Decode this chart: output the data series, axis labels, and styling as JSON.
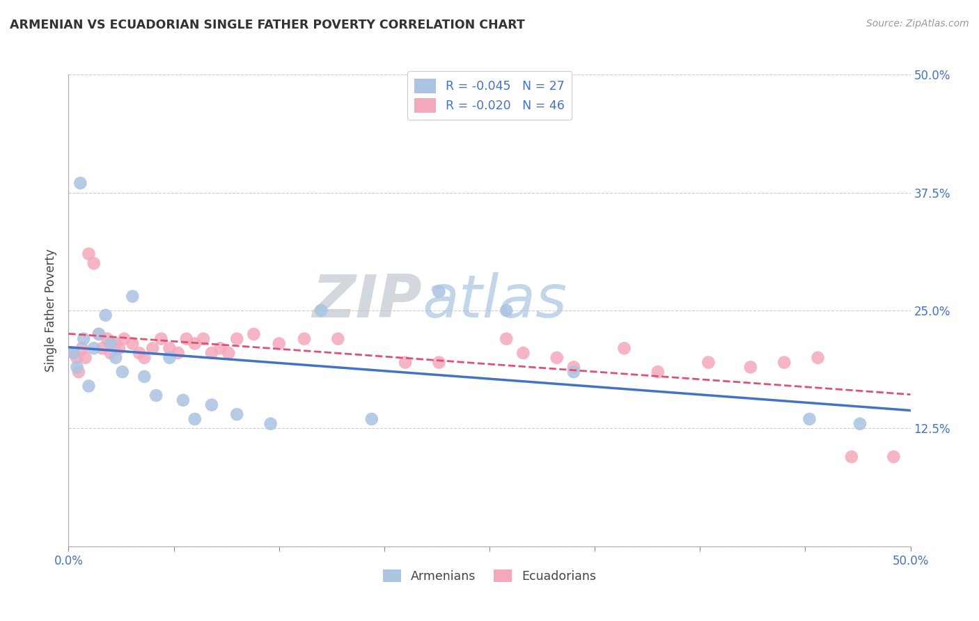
{
  "title": "ARMENIAN VS ECUADORIAN SINGLE FATHER POVERTY CORRELATION CHART",
  "source": "Source: ZipAtlas.com",
  "ylabel": "Single Father Poverty",
  "legend_armenian": "R = -0.045   N = 27",
  "legend_ecuadorian": "R = -0.020   N = 46",
  "legend_label1": "Armenians",
  "legend_label2": "Ecuadorians",
  "color_armenian": "#aac4e2",
  "color_ecuadorian": "#f5a8bb",
  "line_armenian": "#4472c4",
  "line_ecuadorian": "#e05070",
  "watermark_zip": "ZIP",
  "watermark_atlas": "atlas",
  "xlim": [
    0.0,
    50.0
  ],
  "ylim": [
    0.0,
    50.0
  ],
  "xticks": [
    0.0,
    6.25,
    12.5,
    18.75,
    25.0,
    31.25,
    37.5,
    43.75,
    50.0
  ],
  "yticks": [
    0.0,
    12.5,
    25.0,
    37.5,
    50.0
  ],
  "background_color": "#ffffff",
  "grid_color": "#cccccc",
  "armenian_x": [
    0.3,
    0.5,
    0.7,
    0.9,
    1.2,
    1.5,
    1.8,
    2.2,
    2.5,
    2.8,
    3.2,
    3.8,
    4.5,
    5.2,
    6.0,
    6.8,
    7.5,
    8.5,
    10.0,
    12.0,
    15.0,
    18.0,
    22.0,
    26.0,
    30.0,
    44.0,
    47.0
  ],
  "armenian_y": [
    20.5,
    19.0,
    38.5,
    22.0,
    17.0,
    21.0,
    22.5,
    24.5,
    21.5,
    20.0,
    18.5,
    26.5,
    18.0,
    16.0,
    20.0,
    15.5,
    13.5,
    15.0,
    14.0,
    13.0,
    25.0,
    13.5,
    27.0,
    25.0,
    18.5,
    13.5,
    13.0
  ],
  "ecuadorian_x": [
    0.3,
    0.5,
    0.6,
    0.8,
    1.0,
    1.2,
    1.5,
    1.8,
    2.0,
    2.3,
    2.5,
    2.8,
    3.0,
    3.3,
    3.8,
    4.2,
    4.5,
    5.0,
    5.5,
    6.0,
    6.5,
    7.0,
    7.5,
    8.0,
    8.5,
    9.0,
    9.5,
    10.0,
    11.0,
    12.5,
    14.0,
    16.0,
    20.0,
    22.0,
    26.0,
    30.0,
    33.0,
    35.0,
    38.0,
    40.5,
    42.5,
    44.5,
    46.5,
    49.0,
    27.0,
    29.0
  ],
  "ecuadorian_y": [
    20.5,
    20.0,
    18.5,
    21.0,
    20.0,
    31.0,
    30.0,
    22.5,
    21.0,
    22.0,
    20.5,
    21.5,
    21.0,
    22.0,
    21.5,
    20.5,
    20.0,
    21.0,
    22.0,
    21.0,
    20.5,
    22.0,
    21.5,
    22.0,
    20.5,
    21.0,
    20.5,
    22.0,
    22.5,
    21.5,
    22.0,
    22.0,
    19.5,
    19.5,
    22.0,
    19.0,
    21.0,
    18.5,
    19.5,
    19.0,
    19.5,
    20.0,
    9.5,
    9.5,
    20.5,
    20.0
  ]
}
